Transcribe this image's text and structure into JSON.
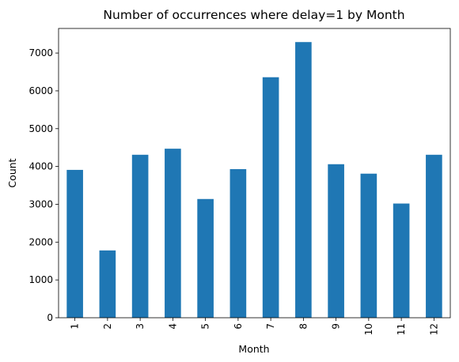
{
  "chart_data": {
    "type": "bar",
    "title": "Number of occurrences where delay=1 by Month",
    "xlabel": "Month",
    "ylabel": "Count",
    "categories": [
      "1",
      "2",
      "3",
      "4",
      "5",
      "6",
      "7",
      "8",
      "9",
      "10",
      "11",
      "12"
    ],
    "values": [
      3910,
      1780,
      4310,
      4470,
      3140,
      3930,
      6360,
      7290,
      4060,
      3810,
      3020,
      4310
    ],
    "ylim": [
      0,
      7650
    ],
    "yticks": [
      0,
      1000,
      2000,
      3000,
      4000,
      5000,
      6000,
      7000
    ],
    "xtick_rotation": "vertical",
    "grid": false,
    "legend": "none",
    "bar_color": "#1f77b4"
  }
}
